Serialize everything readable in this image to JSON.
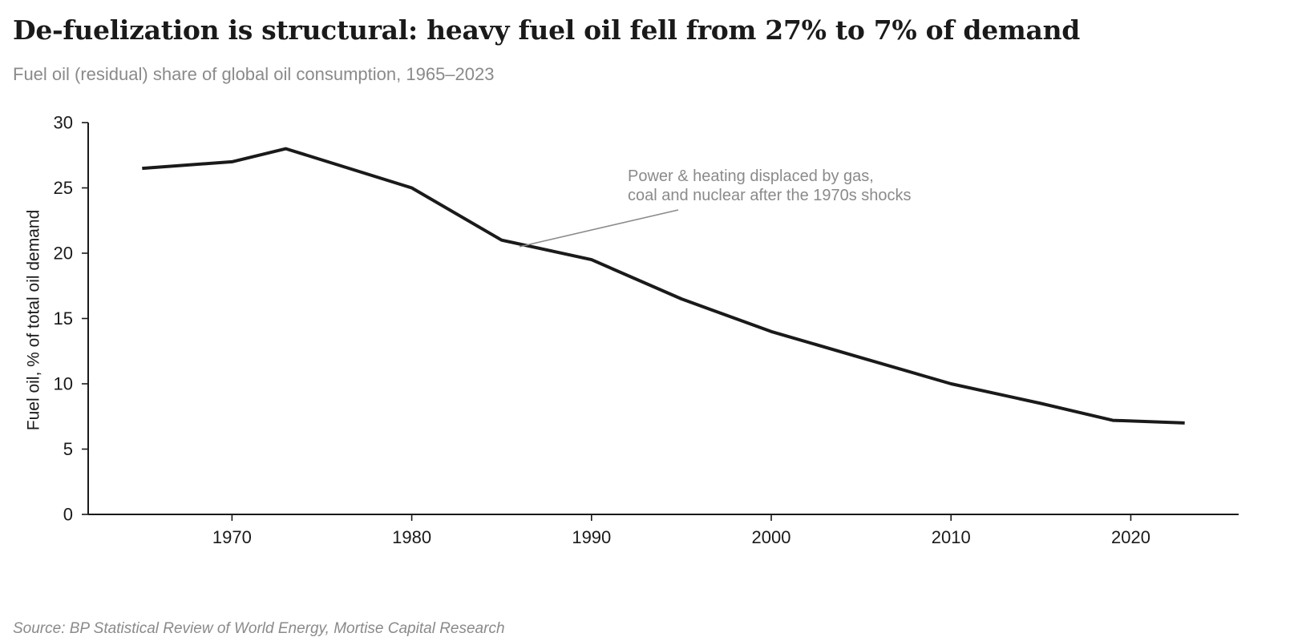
{
  "title": "De-fuelization is structural: heavy fuel oil fell from 27% to 7% of demand",
  "subtitle": "Fuel oil (residual) share of global oil consumption, 1965–2023",
  "source": "Source: BP Statistical Review of World Energy, Mortise Capital Research",
  "chart_data": {
    "type": "line",
    "title": "De-fuelization is structural: heavy fuel oil fell from 27% to 7% of demand",
    "subtitle": "Fuel oil (residual) share of global oil consumption, 1965–2023",
    "xlabel": "",
    "ylabel": "Fuel oil, % of total oil demand",
    "xlim": [
      1962,
      2026
    ],
    "ylim": [
      0,
      30
    ],
    "x_ticks": [
      1970,
      1980,
      1990,
      2000,
      2010,
      2020
    ],
    "y_ticks": [
      0,
      5,
      10,
      15,
      20,
      25,
      30
    ],
    "grid": false,
    "legend": "none",
    "series": [
      {
        "color": "#1a1a1a",
        "x": [
          1965,
          1970,
          1973,
          1980,
          1985,
          1990,
          1995,
          2000,
          2005,
          2010,
          2015,
          2019,
          2023
        ],
        "y": [
          26.5,
          27.0,
          28.0,
          25.0,
          21.0,
          19.5,
          16.5,
          14.0,
          12.0,
          10.0,
          8.5,
          7.2,
          7.0
        ]
      }
    ],
    "annotations": [
      {
        "lines": [
          "Power & heating displaced by gas,",
          "coal and nuclear after the 1970s shocks"
        ],
        "point": [
          1986,
          20.5
        ],
        "color": "#8a8a8a"
      }
    ]
  }
}
